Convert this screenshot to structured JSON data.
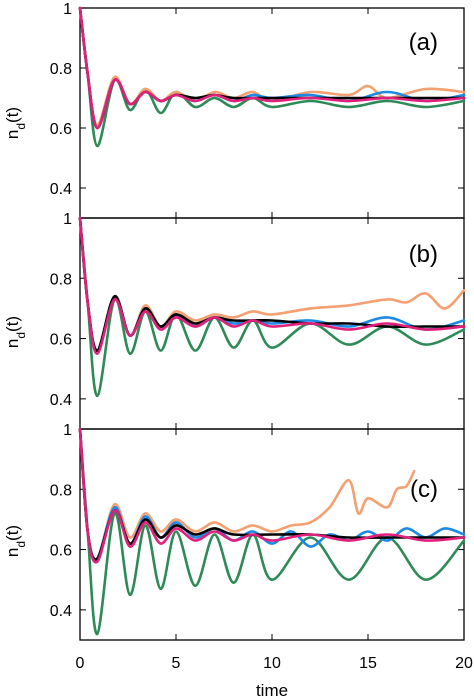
{
  "chart_data": {
    "type": "line",
    "xlabel": "time",
    "ylabel": "n_d(t)",
    "ylabel_main": "n",
    "ylabel_sub": "d",
    "ylabel_tail": "(t)",
    "xlim": [
      0,
      20
    ],
    "ylim": [
      0.3,
      1.0
    ],
    "x_ticks": [
      0,
      5,
      10,
      15,
      20
    ],
    "x_tick_labels": [
      "0",
      "5",
      "10",
      "15",
      "20"
    ],
    "y_ticks": [
      0.4,
      0.6,
      0.8,
      1.0
    ],
    "y_tick_labels": [
      "0.4",
      "0.6",
      "0.8",
      "1"
    ],
    "grid": false,
    "series_colors": [
      "#2e8b57",
      "#f4a070",
      "#1e88e5",
      "#000000",
      "#e0207a"
    ],
    "panels": [
      {
        "label": "(a)",
        "series": [
          {
            "color": "#2e8b57",
            "x": [
              0,
              0.4,
              0.9,
              1.8,
              2.6,
              3.4,
              4.2,
              5,
              6,
              7,
              8,
              9,
              10,
              12,
              14,
              16,
              18,
              20
            ],
            "y": [
              1,
              0.78,
              0.54,
              0.76,
              0.66,
              0.73,
              0.65,
              0.72,
              0.67,
              0.7,
              0.67,
              0.7,
              0.67,
              0.69,
              0.67,
              0.69,
              0.67,
              0.69
            ]
          },
          {
            "color": "#f4a070",
            "x": [
              0,
              0.4,
              0.9,
              1.8,
              2.6,
              3.4,
              4.2,
              5,
              6,
              7,
              8,
              9,
              10,
              12,
              14,
              15,
              16,
              18,
              20
            ],
            "y": [
              1,
              0.78,
              0.61,
              0.77,
              0.68,
              0.73,
              0.69,
              0.72,
              0.69,
              0.72,
              0.7,
              0.72,
              0.69,
              0.72,
              0.71,
              0.74,
              0.7,
              0.73,
              0.72
            ]
          },
          {
            "color": "#1e88e5",
            "x": [
              0,
              0.4,
              0.9,
              1.8,
              2.6,
              3.4,
              4.2,
              5,
              6,
              7,
              8,
              9,
              10,
              12,
              14,
              16,
              18,
              20
            ],
            "y": [
              1,
              0.78,
              0.6,
              0.76,
              0.68,
              0.72,
              0.69,
              0.71,
              0.69,
              0.71,
              0.69,
              0.71,
              0.7,
              0.71,
              0.69,
              0.72,
              0.69,
              0.71
            ]
          },
          {
            "color": "#000000",
            "x": [
              0,
              0.4,
              0.9,
              1.8,
              2.6,
              3.4,
              4.2,
              5,
              6,
              7,
              8,
              10,
              12,
              14,
              16,
              18,
              20
            ],
            "y": [
              1,
              0.78,
              0.6,
              0.76,
              0.68,
              0.72,
              0.69,
              0.71,
              0.7,
              0.71,
              0.7,
              0.7,
              0.7,
              0.7,
              0.7,
              0.7,
              0.7
            ]
          },
          {
            "color": "#e0207a",
            "x": [
              0,
              0.4,
              0.9,
              1.8,
              2.6,
              3.4,
              4.2,
              5,
              6,
              7,
              8,
              9,
              10,
              12,
              14,
              16,
              18,
              20
            ],
            "y": [
              1,
              0.78,
              0.6,
              0.76,
              0.68,
              0.72,
              0.69,
              0.71,
              0.69,
              0.71,
              0.69,
              0.7,
              0.69,
              0.7,
              0.69,
              0.7,
              0.69,
              0.7
            ]
          }
        ]
      },
      {
        "label": "(b)",
        "series": [
          {
            "color": "#2e8b57",
            "x": [
              0,
              0.4,
              0.9,
              1.8,
              2.6,
              3.4,
              4.2,
              5,
              6,
              7,
              8,
              9,
              10,
              12,
              14,
              16,
              18,
              20
            ],
            "y": [
              1,
              0.72,
              0.41,
              0.73,
              0.55,
              0.69,
              0.56,
              0.68,
              0.56,
              0.67,
              0.57,
              0.66,
              0.57,
              0.65,
              0.58,
              0.64,
              0.58,
              0.63
            ]
          },
          {
            "color": "#f4a070",
            "x": [
              0,
              0.4,
              0.9,
              1.8,
              2.6,
              3.4,
              4.2,
              5,
              6,
              7,
              8,
              9,
              10,
              12,
              14,
              16,
              17,
              18,
              19,
              20
            ],
            "y": [
              1,
              0.72,
              0.56,
              0.74,
              0.61,
              0.71,
              0.64,
              0.69,
              0.66,
              0.68,
              0.67,
              0.69,
              0.68,
              0.7,
              0.71,
              0.73,
              0.72,
              0.75,
              0.7,
              0.76
            ]
          },
          {
            "color": "#1e88e5",
            "x": [
              0,
              0.4,
              0.9,
              1.8,
              2.6,
              3.4,
              4.2,
              5,
              6,
              7,
              8,
              9,
              10,
              12,
              14,
              16,
              18,
              20
            ],
            "y": [
              1,
              0.72,
              0.56,
              0.74,
              0.61,
              0.7,
              0.64,
              0.68,
              0.64,
              0.67,
              0.65,
              0.66,
              0.65,
              0.66,
              0.64,
              0.67,
              0.63,
              0.66
            ]
          },
          {
            "color": "#000000",
            "x": [
              0,
              0.4,
              0.9,
              1.8,
              2.6,
              3.4,
              4.2,
              5,
              6,
              7,
              8,
              10,
              12,
              14,
              16,
              18,
              20
            ],
            "y": [
              1,
              0.72,
              0.56,
              0.74,
              0.61,
              0.7,
              0.64,
              0.68,
              0.65,
              0.67,
              0.66,
              0.66,
              0.65,
              0.65,
              0.64,
              0.64,
              0.64
            ]
          },
          {
            "color": "#e0207a",
            "x": [
              0,
              0.4,
              0.9,
              1.8,
              2.6,
              3.4,
              4.2,
              5,
              6,
              7,
              8,
              9,
              10,
              12,
              14,
              16,
              18,
              20
            ],
            "y": [
              1,
              0.72,
              0.55,
              0.73,
              0.61,
              0.69,
              0.63,
              0.67,
              0.64,
              0.67,
              0.64,
              0.66,
              0.64,
              0.65,
              0.63,
              0.65,
              0.63,
              0.64
            ]
          }
        ]
      },
      {
        "label": "(c)",
        "series": [
          {
            "color": "#2e8b57",
            "x": [
              0,
              0.4,
              0.9,
              1.8,
              2.6,
              3.4,
              4.2,
              5,
              6,
              7,
              8,
              9,
              10,
              12,
              14,
              16,
              18,
              20
            ],
            "y": [
              1,
              0.66,
              0.32,
              0.72,
              0.45,
              0.68,
              0.47,
              0.66,
              0.48,
              0.65,
              0.49,
              0.65,
              0.5,
              0.64,
              0.5,
              0.64,
              0.5,
              0.63
            ]
          },
          {
            "color": "#f4a070",
            "x": [
              0,
              0.4,
              0.9,
              1.8,
              2.6,
              3.4,
              4.2,
              5,
              6,
              7,
              8,
              9,
              10,
              11,
              12,
              13,
              14,
              14.5,
              15,
              16,
              16.5,
              17,
              17.4
            ],
            "y": [
              1,
              0.66,
              0.57,
              0.75,
              0.64,
              0.72,
              0.66,
              0.7,
              0.66,
              0.69,
              0.66,
              0.68,
              0.66,
              0.68,
              0.69,
              0.74,
              0.83,
              0.72,
              0.77,
              0.74,
              0.8,
              0.81,
              0.86
            ]
          },
          {
            "color": "#1e88e5",
            "x": [
              0,
              0.4,
              0.9,
              1.8,
              2.6,
              3.4,
              4.2,
              5,
              6,
              7,
              8,
              9,
              10,
              11,
              12,
              13,
              14,
              15,
              16,
              17,
              18,
              19,
              20
            ],
            "y": [
              1,
              0.66,
              0.57,
              0.74,
              0.62,
              0.71,
              0.64,
              0.69,
              0.64,
              0.67,
              0.63,
              0.66,
              0.62,
              0.66,
              0.61,
              0.65,
              0.63,
              0.66,
              0.63,
              0.67,
              0.64,
              0.67,
              0.65
            ]
          },
          {
            "color": "#000000",
            "x": [
              0,
              0.4,
              0.9,
              1.8,
              2.6,
              3.4,
              4.2,
              5,
              6,
              7,
              8,
              10,
              12,
              14,
              16,
              18,
              20
            ],
            "y": [
              1,
              0.66,
              0.57,
              0.73,
              0.62,
              0.7,
              0.64,
              0.68,
              0.65,
              0.67,
              0.65,
              0.65,
              0.65,
              0.64,
              0.64,
              0.64,
              0.64
            ]
          },
          {
            "color": "#e0207a",
            "x": [
              0,
              0.4,
              0.9,
              1.8,
              2.6,
              3.4,
              4.2,
              5,
              6,
              7,
              8,
              9,
              10,
              12,
              14,
              16,
              18,
              20
            ],
            "y": [
              1,
              0.66,
              0.56,
              0.73,
              0.61,
              0.69,
              0.62,
              0.67,
              0.63,
              0.66,
              0.63,
              0.65,
              0.63,
              0.65,
              0.63,
              0.65,
              0.63,
              0.64
            ]
          }
        ]
      }
    ]
  }
}
